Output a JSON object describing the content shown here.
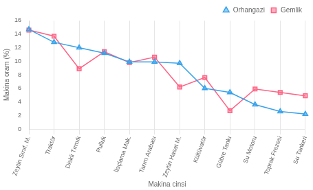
{
  "chart_data": {
    "type": "line",
    "categories": [
      "Zeytin Sınıf. M.",
      "Traktör",
      "Diskli Tırmık",
      "Pulluk",
      "İlaçlama Mak.",
      "Tarım Arabası",
      "Zeytin Hasat M.",
      "Kültüvatör",
      "Gübre Tankı",
      "Su Motoru",
      "Toprak Frezesi",
      "Su Tankeri"
    ],
    "series": [
      {
        "name": "Orhangazi",
        "marker": "triangle",
        "values": [
          14.7,
          12.8,
          12.0,
          11.2,
          9.9,
          9.9,
          9.7,
          6.0,
          5.4,
          3.6,
          2.6,
          2.2
        ]
      },
      {
        "name": "Gemlik",
        "marker": "square",
        "values": [
          14.6,
          13.7,
          8.9,
          11.4,
          9.8,
          10.6,
          6.2,
          7.6,
          2.7,
          5.9,
          5.4,
          4.9
        ]
      }
    ],
    "xlabel": "Makina cinsi",
    "ylabel": "Makina oram (%)",
    "ylim": [
      0,
      16
    ],
    "yticks": [
      0,
      2,
      4,
      6,
      8,
      10,
      12,
      14,
      16
    ],
    "grid": "x",
    "legend": "upper right"
  }
}
